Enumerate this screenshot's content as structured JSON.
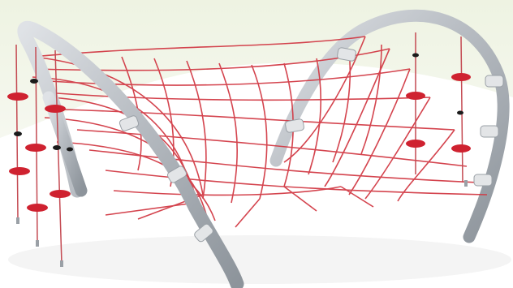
{
  "image": {
    "subject": "rope-net-climbing-frame",
    "colors": {
      "background_tint": "#eef3e2",
      "background": "#ffffff",
      "net_rope": "#d23a45",
      "steel_frame": "#b9bec4",
      "frame_shadow": "#8d949b",
      "clamp": "#e3e5e7",
      "disc_seat": "#cf2230",
      "black_spacer": "#1b1b1b",
      "ground_shadow": "#f2f2f2"
    },
    "icons": [
      "arch-frame",
      "net",
      "rope-disc-seat",
      "clamp"
    ]
  }
}
